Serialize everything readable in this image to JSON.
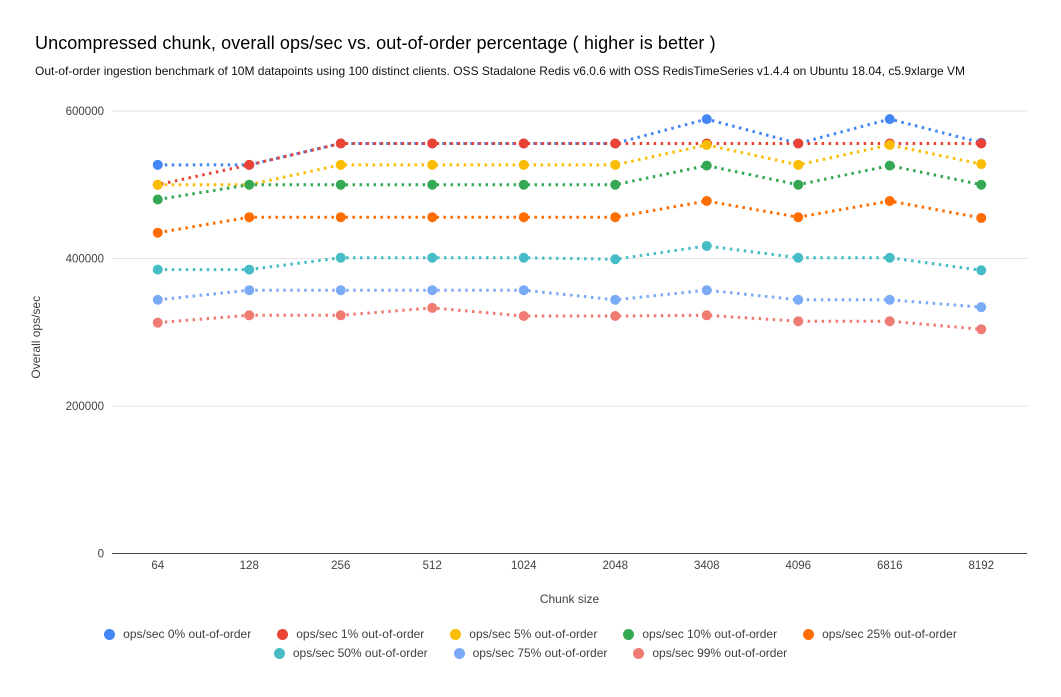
{
  "chart_data": {
    "type": "line",
    "line_style": "dotted",
    "title": "Uncompressed chunk, overall ops/sec vs. out-of-order percentage ( higher is better )",
    "subtitle": "Out-of-order ingestion benchmark of 10M datapoints using 100 distinct clients. OSS Stadalone Redis v6.0.6 with OSS RedisTimeSeries v1.4.4 on Ubuntu 18.04, c5.9xlarge VM",
    "xlabel": "Chunk size",
    "ylabel": "Overall ops/sec",
    "categories": [
      "64",
      "128",
      "256",
      "512",
      "1024",
      "2048",
      "3408",
      "4096",
      "6816",
      "8192"
    ],
    "ylim": [
      0,
      600000
    ],
    "yticks": [
      0,
      200000,
      400000,
      600000
    ],
    "grid": true,
    "legend_position": "bottom",
    "series": [
      {
        "name": "ops/sec 0% out-of-order",
        "color": "#4285F4",
        "values": [
          527000,
          527000,
          556000,
          556000,
          556000,
          556000,
          589000,
          556000,
          589000,
          557000
        ]
      },
      {
        "name": "ops/sec 1% out-of-order",
        "color": "#EA4335",
        "values": [
          500000,
          527000,
          556000,
          556000,
          556000,
          556000,
          556000,
          556000,
          556000,
          556000
        ]
      },
      {
        "name": "ops/sec 5% out-of-order",
        "color": "#FBBC04",
        "values": [
          500000,
          500000,
          527000,
          527000,
          527000,
          527000,
          554000,
          527000,
          554000,
          528000
        ]
      },
      {
        "name": "ops/sec 10% out-of-order",
        "color": "#34A853",
        "values": [
          480000,
          500000,
          500000,
          500000,
          500000,
          500000,
          526000,
          500000,
          526000,
          500000
        ]
      },
      {
        "name": "ops/sec 25% out-of-order",
        "color": "#FF6D01",
        "values": [
          435000,
          456000,
          456000,
          456000,
          456000,
          456000,
          478000,
          456000,
          478000,
          455000
        ]
      },
      {
        "name": "ops/sec 50% out-of-order",
        "color": "#46BDC6",
        "values": [
          385000,
          385000,
          401000,
          401000,
          401000,
          399000,
          417000,
          401000,
          401000,
          384000
        ]
      },
      {
        "name": "ops/sec 75% out-of-order",
        "color": "#7BAAF7",
        "values": [
          344000,
          357000,
          357000,
          357000,
          357000,
          344000,
          357000,
          344000,
          344000,
          334000
        ]
      },
      {
        "name": "ops/sec 99% out-of-order",
        "color": "#F07B72",
        "values": [
          313000,
          323000,
          323000,
          333000,
          322000,
          322000,
          323000,
          315000,
          315000,
          304000
        ]
      }
    ]
  }
}
